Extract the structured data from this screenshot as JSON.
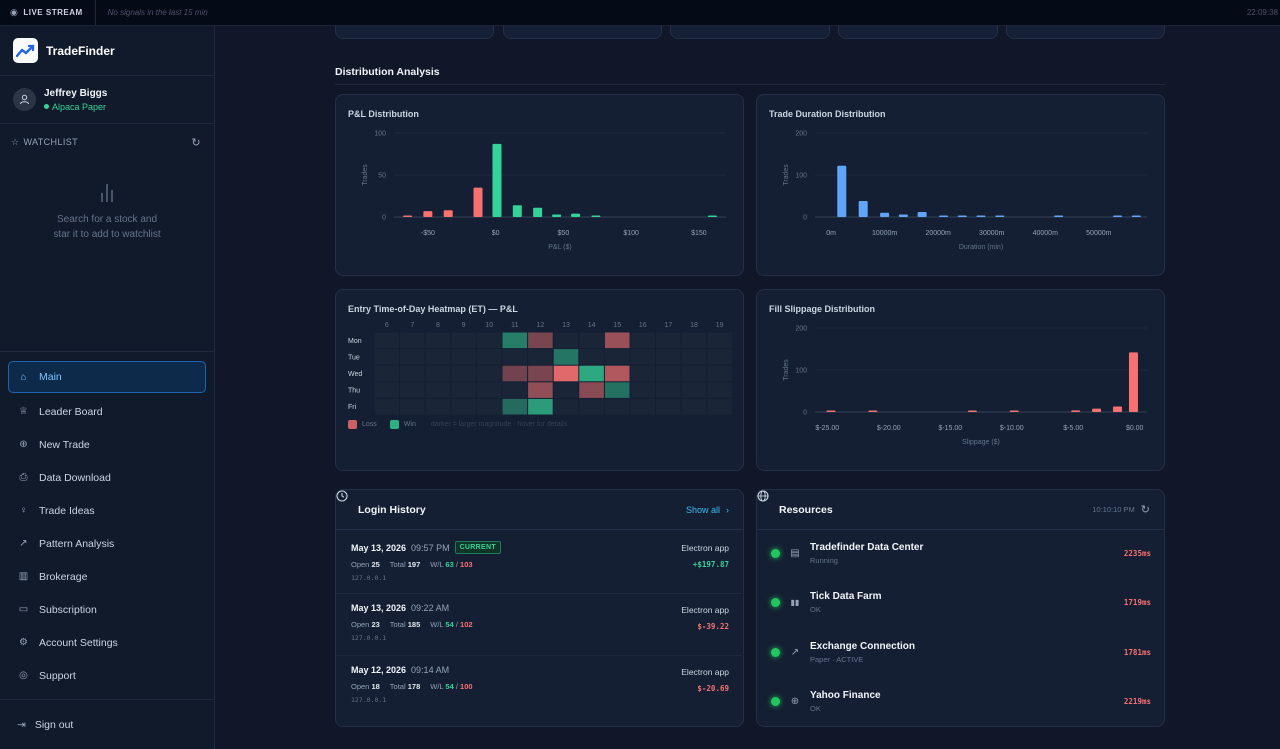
{
  "topbar": {
    "live_label": "LIVE STREAM",
    "signals_text": "No signals in the last 15 min",
    "clock": "22:09:38"
  },
  "brand": {
    "name": "TradeFinder"
  },
  "user": {
    "name": "Jeffrey Biggs",
    "account": "Alpaca Paper"
  },
  "watchlist": {
    "title": "WATCHLIST",
    "empty_line1": "Search for a stock and",
    "empty_line2": "star it to add to watchlist"
  },
  "nav": {
    "items": [
      {
        "label": "Main",
        "icon": "home-icon",
        "active": true
      },
      {
        "label": "Leader Board",
        "icon": "trophy-icon"
      },
      {
        "label": "New Trade",
        "icon": "plus-circle-icon"
      },
      {
        "label": "Data Download",
        "icon": "file-download-icon"
      },
      {
        "label": "Trade Ideas",
        "icon": "lightbulb-icon"
      },
      {
        "label": "Pattern Analysis",
        "icon": "trend-icon"
      },
      {
        "label": "Brokerage",
        "icon": "bank-icon"
      },
      {
        "label": "Subscription",
        "icon": "card-icon"
      },
      {
        "label": "Account Settings",
        "icon": "gear-icon"
      },
      {
        "label": "Support",
        "icon": "lifebuoy-icon"
      }
    ],
    "signout": "Sign out"
  },
  "section": {
    "title": "Distribution Analysis"
  },
  "pnl_chart": {
    "title": "P&L Distribution",
    "chart_data": {
      "type": "bar",
      "xlabel": "P&L ($)",
      "ylabel": "Trades",
      "xlim": [
        -75,
        170
      ],
      "ylim": [
        0,
        100
      ],
      "yticks": [
        0,
        50,
        100
      ],
      "xticks": [
        -50,
        0,
        50,
        100,
        150
      ],
      "xtick_labels": [
        "-$50",
        "$0",
        "$50",
        "$100",
        "$150"
      ],
      "bins": [
        {
          "x": -65,
          "y": 1,
          "color": "#f87171"
        },
        {
          "x": -50,
          "y": 7,
          "color": "#f87171"
        },
        {
          "x": -35,
          "y": 8,
          "color": "#f87171"
        },
        {
          "x": -13,
          "y": 35,
          "color": "#f87171"
        },
        {
          "x": 1,
          "y": 87,
          "color": "#34d399"
        },
        {
          "x": 16,
          "y": 14,
          "color": "#34d399"
        },
        {
          "x": 31,
          "y": 11,
          "color": "#34d399"
        },
        {
          "x": 45,
          "y": 3,
          "color": "#34d399"
        },
        {
          "x": 59,
          "y": 4,
          "color": "#34d399"
        },
        {
          "x": 74,
          "y": 1,
          "color": "#34d399"
        },
        {
          "x": 160,
          "y": 1,
          "color": "#34d399"
        }
      ]
    }
  },
  "duration_chart": {
    "title": "Trade Duration Distribution",
    "chart_data": {
      "type": "bar",
      "xlabel": "Duration (min)",
      "ylabel": "Trades",
      "xlim": [
        -3000,
        59000
      ],
      "ylim": [
        0,
        200
      ],
      "yticks": [
        0,
        100,
        200
      ],
      "xticks": [
        0,
        10000,
        20000,
        30000,
        40000,
        50000
      ],
      "xtick_labels": [
        "0m",
        "10000m",
        "20000m",
        "30000m",
        "40000m",
        "50000m"
      ],
      "bins": [
        {
          "x": 2000,
          "y": 122,
          "color": "#60a5fa"
        },
        {
          "x": 6000,
          "y": 38,
          "color": "#60a5fa"
        },
        {
          "x": 10000,
          "y": 10,
          "color": "#60a5fa"
        },
        {
          "x": 13500,
          "y": 6,
          "color": "#60a5fa"
        },
        {
          "x": 17000,
          "y": 12,
          "color": "#60a5fa"
        },
        {
          "x": 21000,
          "y": 2,
          "color": "#60a5fa"
        },
        {
          "x": 24500,
          "y": 2,
          "color": "#60a5fa"
        },
        {
          "x": 28000,
          "y": 2,
          "color": "#60a5fa"
        },
        {
          "x": 31500,
          "y": 2,
          "color": "#60a5fa"
        },
        {
          "x": 42500,
          "y": 2,
          "color": "#60a5fa"
        },
        {
          "x": 53500,
          "y": 2,
          "color": "#60a5fa"
        },
        {
          "x": 57000,
          "y": 2,
          "color": "#60a5fa"
        }
      ]
    }
  },
  "heatmap": {
    "title": "Entry Time-of-Day Heatmap (ET) — P&L",
    "chart_data": {
      "type": "heatmap",
      "hours": [
        "6",
        "7",
        "8",
        "9",
        "10",
        "11",
        "12",
        "13",
        "14",
        "15",
        "16",
        "17",
        "18",
        "19"
      ],
      "days": [
        "Mon",
        "Tue",
        "Wed",
        "Thu",
        "Fri"
      ],
      "cells": [
        {
          "day": 0,
          "hour": 5,
          "kind": "win",
          "intensity": 0.45
        },
        {
          "day": 0,
          "hour": 6,
          "kind": "loss",
          "intensity": 0.35
        },
        {
          "day": 0,
          "hour": 9,
          "kind": "loss",
          "intensity": 0.55
        },
        {
          "day": 1,
          "hour": 7,
          "kind": "win",
          "intensity": 0.4
        },
        {
          "day": 2,
          "hour": 5,
          "kind": "loss",
          "intensity": 0.3
        },
        {
          "day": 2,
          "hour": 6,
          "kind": "loss",
          "intensity": 0.35
        },
        {
          "day": 2,
          "hour": 7,
          "kind": "loss",
          "intensity": 1.0
        },
        {
          "day": 2,
          "hour": 8,
          "kind": "win",
          "intensity": 0.8
        },
        {
          "day": 2,
          "hour": 9,
          "kind": "loss",
          "intensity": 0.7
        },
        {
          "day": 3,
          "hour": 6,
          "kind": "loss",
          "intensity": 0.5
        },
        {
          "day": 3,
          "hour": 8,
          "kind": "loss",
          "intensity": 0.45
        },
        {
          "day": 3,
          "hour": 9,
          "kind": "win",
          "intensity": 0.35
        },
        {
          "day": 4,
          "hour": 5,
          "kind": "win",
          "intensity": 0.3
        },
        {
          "day": 4,
          "hour": 6,
          "kind": "win",
          "intensity": 0.7
        }
      ],
      "legend": {
        "loss": "Loss",
        "win": "Win",
        "note": "darker = larger magnitude · hover for details"
      },
      "colors": {
        "loss": "#f87171",
        "win": "#34d399",
        "empty": "#1a2538"
      }
    }
  },
  "slippage_chart": {
    "title": "Fill Slippage Distribution",
    "chart_data": {
      "type": "bar",
      "xlabel": "Slippage ($)",
      "ylabel": "Trades",
      "xlim": [
        -26,
        1
      ],
      "ylim": [
        0,
        200
      ],
      "yticks": [
        0,
        100,
        200
      ],
      "xticks": [
        -25,
        -20,
        -15,
        -10,
        -5,
        0
      ],
      "xtick_labels": [
        "$-25.00",
        "$-20.00",
        "$-15.00",
        "$-10.00",
        "$-5.00",
        "$0.00"
      ],
      "bins": [
        {
          "x": -24.7,
          "y": 2,
          "color": "#f87171"
        },
        {
          "x": -21.3,
          "y": 2,
          "color": "#f87171"
        },
        {
          "x": -13.2,
          "y": 2,
          "color": "#f87171"
        },
        {
          "x": -9.8,
          "y": 2,
          "color": "#f87171"
        },
        {
          "x": -4.8,
          "y": 4,
          "color": "#f87171"
        },
        {
          "x": -3.1,
          "y": 8,
          "color": "#f87171"
        },
        {
          "x": -1.4,
          "y": 13,
          "color": "#f87171"
        },
        {
          "x": -0.1,
          "y": 142,
          "color": "#f87171"
        }
      ]
    }
  },
  "login_history": {
    "title": "Login History",
    "show_all": "Show all",
    "rows": [
      {
        "date": "May 13, 2026",
        "time": "09:57 PM",
        "badge": "CURRENT",
        "app": "Electron app",
        "open_label": "Open",
        "open": "25",
        "total_label": "Total",
        "total": "197",
        "wl_label": "W/L",
        "wins": "63",
        "slash": "/",
        "losses": "103",
        "pnl": "+$197.87",
        "pnl_positive": true,
        "ip": "127.0.0.1"
      },
      {
        "date": "May 13, 2026",
        "time": "09:22 AM",
        "badge": "",
        "app": "Electron app",
        "open_label": "Open",
        "open": "23",
        "total_label": "Total",
        "total": "185",
        "wl_label": "W/L",
        "wins": "54",
        "slash": "/",
        "losses": "102",
        "pnl": "$-39.22",
        "pnl_positive": false,
        "ip": "127.0.0.1"
      },
      {
        "date": "May 12, 2026",
        "time": "09:14 AM",
        "badge": "",
        "app": "Electron app",
        "open_label": "Open",
        "open": "18",
        "total_label": "Total",
        "total": "178",
        "wl_label": "W/L",
        "wins": "54",
        "slash": "/",
        "losses": "100",
        "pnl": "$-20.69",
        "pnl_positive": false,
        "ip": "127.0.0.1"
      }
    ]
  },
  "resources": {
    "title": "Resources",
    "time": "10:10:10 PM",
    "rows": [
      {
        "name": "Tradefinder Data Center",
        "status": "Running",
        "ms": "2235ms",
        "icon": "server-icon"
      },
      {
        "name": "Tick Data Farm",
        "status": "OK",
        "ms": "1719ms",
        "icon": "bar-chart-icon"
      },
      {
        "name": "Exchange Connection",
        "status": "Paper · ACTIVE",
        "ms": "1781ms",
        "icon": "trend-icon"
      },
      {
        "name": "Yahoo Finance",
        "status": "OK",
        "ms": "2219ms",
        "icon": "globe-icon"
      }
    ]
  }
}
